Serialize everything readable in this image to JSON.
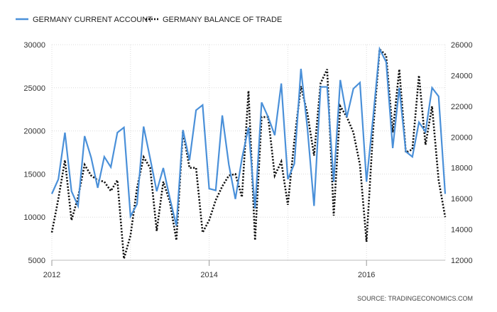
{
  "chart_data": {
    "type": "line",
    "legend": {
      "placement": "top-left",
      "entries": [
        "GERMANY CURRENT ACCOUNT",
        "GERMANY BALANCE OF TRADE"
      ]
    },
    "source_text": "SOURCE: TRADINGECONOMICS.COM",
    "grid": true,
    "x_range": [
      2012.0,
      2017.0
    ],
    "x_ticks": [
      "2012",
      "2014",
      "2016"
    ],
    "y_left": {
      "range": [
        5000,
        30000
      ],
      "ticks": [
        "5000",
        "10000",
        "15000",
        "20000",
        "25000",
        "30000"
      ]
    },
    "y_right": {
      "range": [
        12000,
        26000
      ],
      "ticks": [
        "12000",
        "14000",
        "16000",
        "18000",
        "20000",
        "22000",
        "24000",
        "26000"
      ]
    },
    "series": [
      {
        "name": "GERMANY CURRENT ACCOUNT",
        "axis": "left",
        "color": "#4a90d9",
        "style": "solid",
        "x": [
          2012.0,
          2012.0833,
          2012.1667,
          2012.25,
          2012.3333,
          2012.4167,
          2012.5,
          2012.5833,
          2012.6667,
          2012.75,
          2012.8333,
          2012.9167,
          2013.0,
          2013.0833,
          2013.1667,
          2013.25,
          2013.3333,
          2013.4167,
          2013.5,
          2013.5833,
          2013.6667,
          2013.75,
          2013.8333,
          2013.9167,
          2014.0,
          2014.0833,
          2014.1667,
          2014.25,
          2014.3333,
          2014.4167,
          2014.5,
          2014.5833,
          2014.6667,
          2014.75,
          2014.8333,
          2014.9167,
          2015.0,
          2015.0833,
          2015.1667,
          2015.25,
          2015.3333,
          2015.4167,
          2015.5,
          2015.5833,
          2015.6667,
          2015.75,
          2015.8333,
          2015.9167,
          2016.0,
          2016.0833,
          2016.1667,
          2016.25,
          2016.3333,
          2016.4167,
          2016.5,
          2016.5833,
          2016.6667,
          2016.75,
          2016.8333,
          2016.9167,
          2017.0
        ],
        "values": [
          12700,
          14400,
          19800,
          13000,
          11300,
          19400,
          16900,
          13400,
          17000,
          15800,
          19800,
          20400,
          10100,
          11500,
          20500,
          16800,
          13000,
          15700,
          12200,
          9000,
          20100,
          16600,
          22400,
          23000,
          13300,
          13100,
          21800,
          16100,
          12100,
          16800,
          20400,
          11000,
          23300,
          21600,
          19500,
          25500,
          14400,
          16200,
          27200,
          20200,
          11300,
          25100,
          25100,
          14100,
          25900,
          21600,
          24900,
          25600,
          14100,
          21500,
          29500,
          28000,
          18000,
          25000,
          17600,
          17000,
          21000,
          19900,
          25000,
          24000,
          12700
        ]
      },
      {
        "name": "GERMANY BALANCE OF TRADE",
        "axis": "right",
        "color": "#111111",
        "style": "dotted",
        "x": [
          2012.0,
          2012.0833,
          2012.1667,
          2012.25,
          2012.3333,
          2012.4167,
          2012.5,
          2012.5833,
          2012.6667,
          2012.75,
          2012.8333,
          2012.9167,
          2013.0,
          2013.0833,
          2013.1667,
          2013.25,
          2013.3333,
          2013.4167,
          2013.5,
          2013.5833,
          2013.6667,
          2013.75,
          2013.8333,
          2013.9167,
          2014.0,
          2014.0833,
          2014.1667,
          2014.25,
          2014.3333,
          2014.4167,
          2014.5,
          2014.5833,
          2014.6667,
          2014.75,
          2014.8333,
          2014.9167,
          2015.0,
          2015.0833,
          2015.1667,
          2015.25,
          2015.3333,
          2015.4167,
          2015.5,
          2015.5833,
          2015.6667,
          2015.75,
          2015.8333,
          2015.9167,
          2016.0,
          2016.0833,
          2016.1667,
          2016.25,
          2016.3333,
          2016.4167,
          2016.5,
          2016.5833,
          2016.6667,
          2016.75,
          2016.8333,
          2016.9167,
          2017.0
        ],
        "values": [
          13800,
          16000,
          18500,
          14600,
          16100,
          18200,
          17500,
          17200,
          17100,
          16500,
          17200,
          12100,
          13600,
          16700,
          18700,
          18000,
          13900,
          17100,
          15800,
          13300,
          20400,
          18000,
          18000,
          13800,
          14600,
          15900,
          16800,
          17500,
          17600,
          16100,
          23000,
          13300,
          21300,
          21300,
          17500,
          18400,
          15600,
          19800,
          23300,
          21500,
          18800,
          23500,
          24400,
          14900,
          22000,
          21300,
          20300,
          18200,
          13200,
          20400,
          25700,
          25300,
          20300,
          24400,
          19000,
          19200,
          24000,
          19500,
          22000,
          17200,
          14800
        ]
      }
    ]
  }
}
